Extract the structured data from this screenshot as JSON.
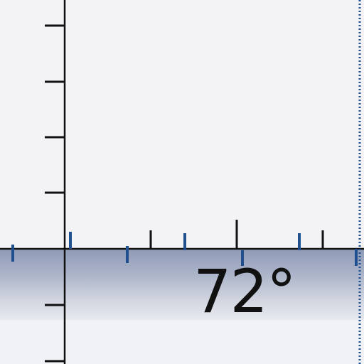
{
  "angle_readout": {
    "value": "72°"
  },
  "colors": {
    "background": "#f3f3f6",
    "band_top": "#9aa4bd",
    "band_bottom": "#e3e5ec",
    "axis": "#111111",
    "blue_tick": "#1f4f8f"
  },
  "icons": {
    "left_axis": "vertical-ruler-axis",
    "baseline": "horizontal-baseline-axis",
    "right_edge": "dotted-edge-line"
  }
}
